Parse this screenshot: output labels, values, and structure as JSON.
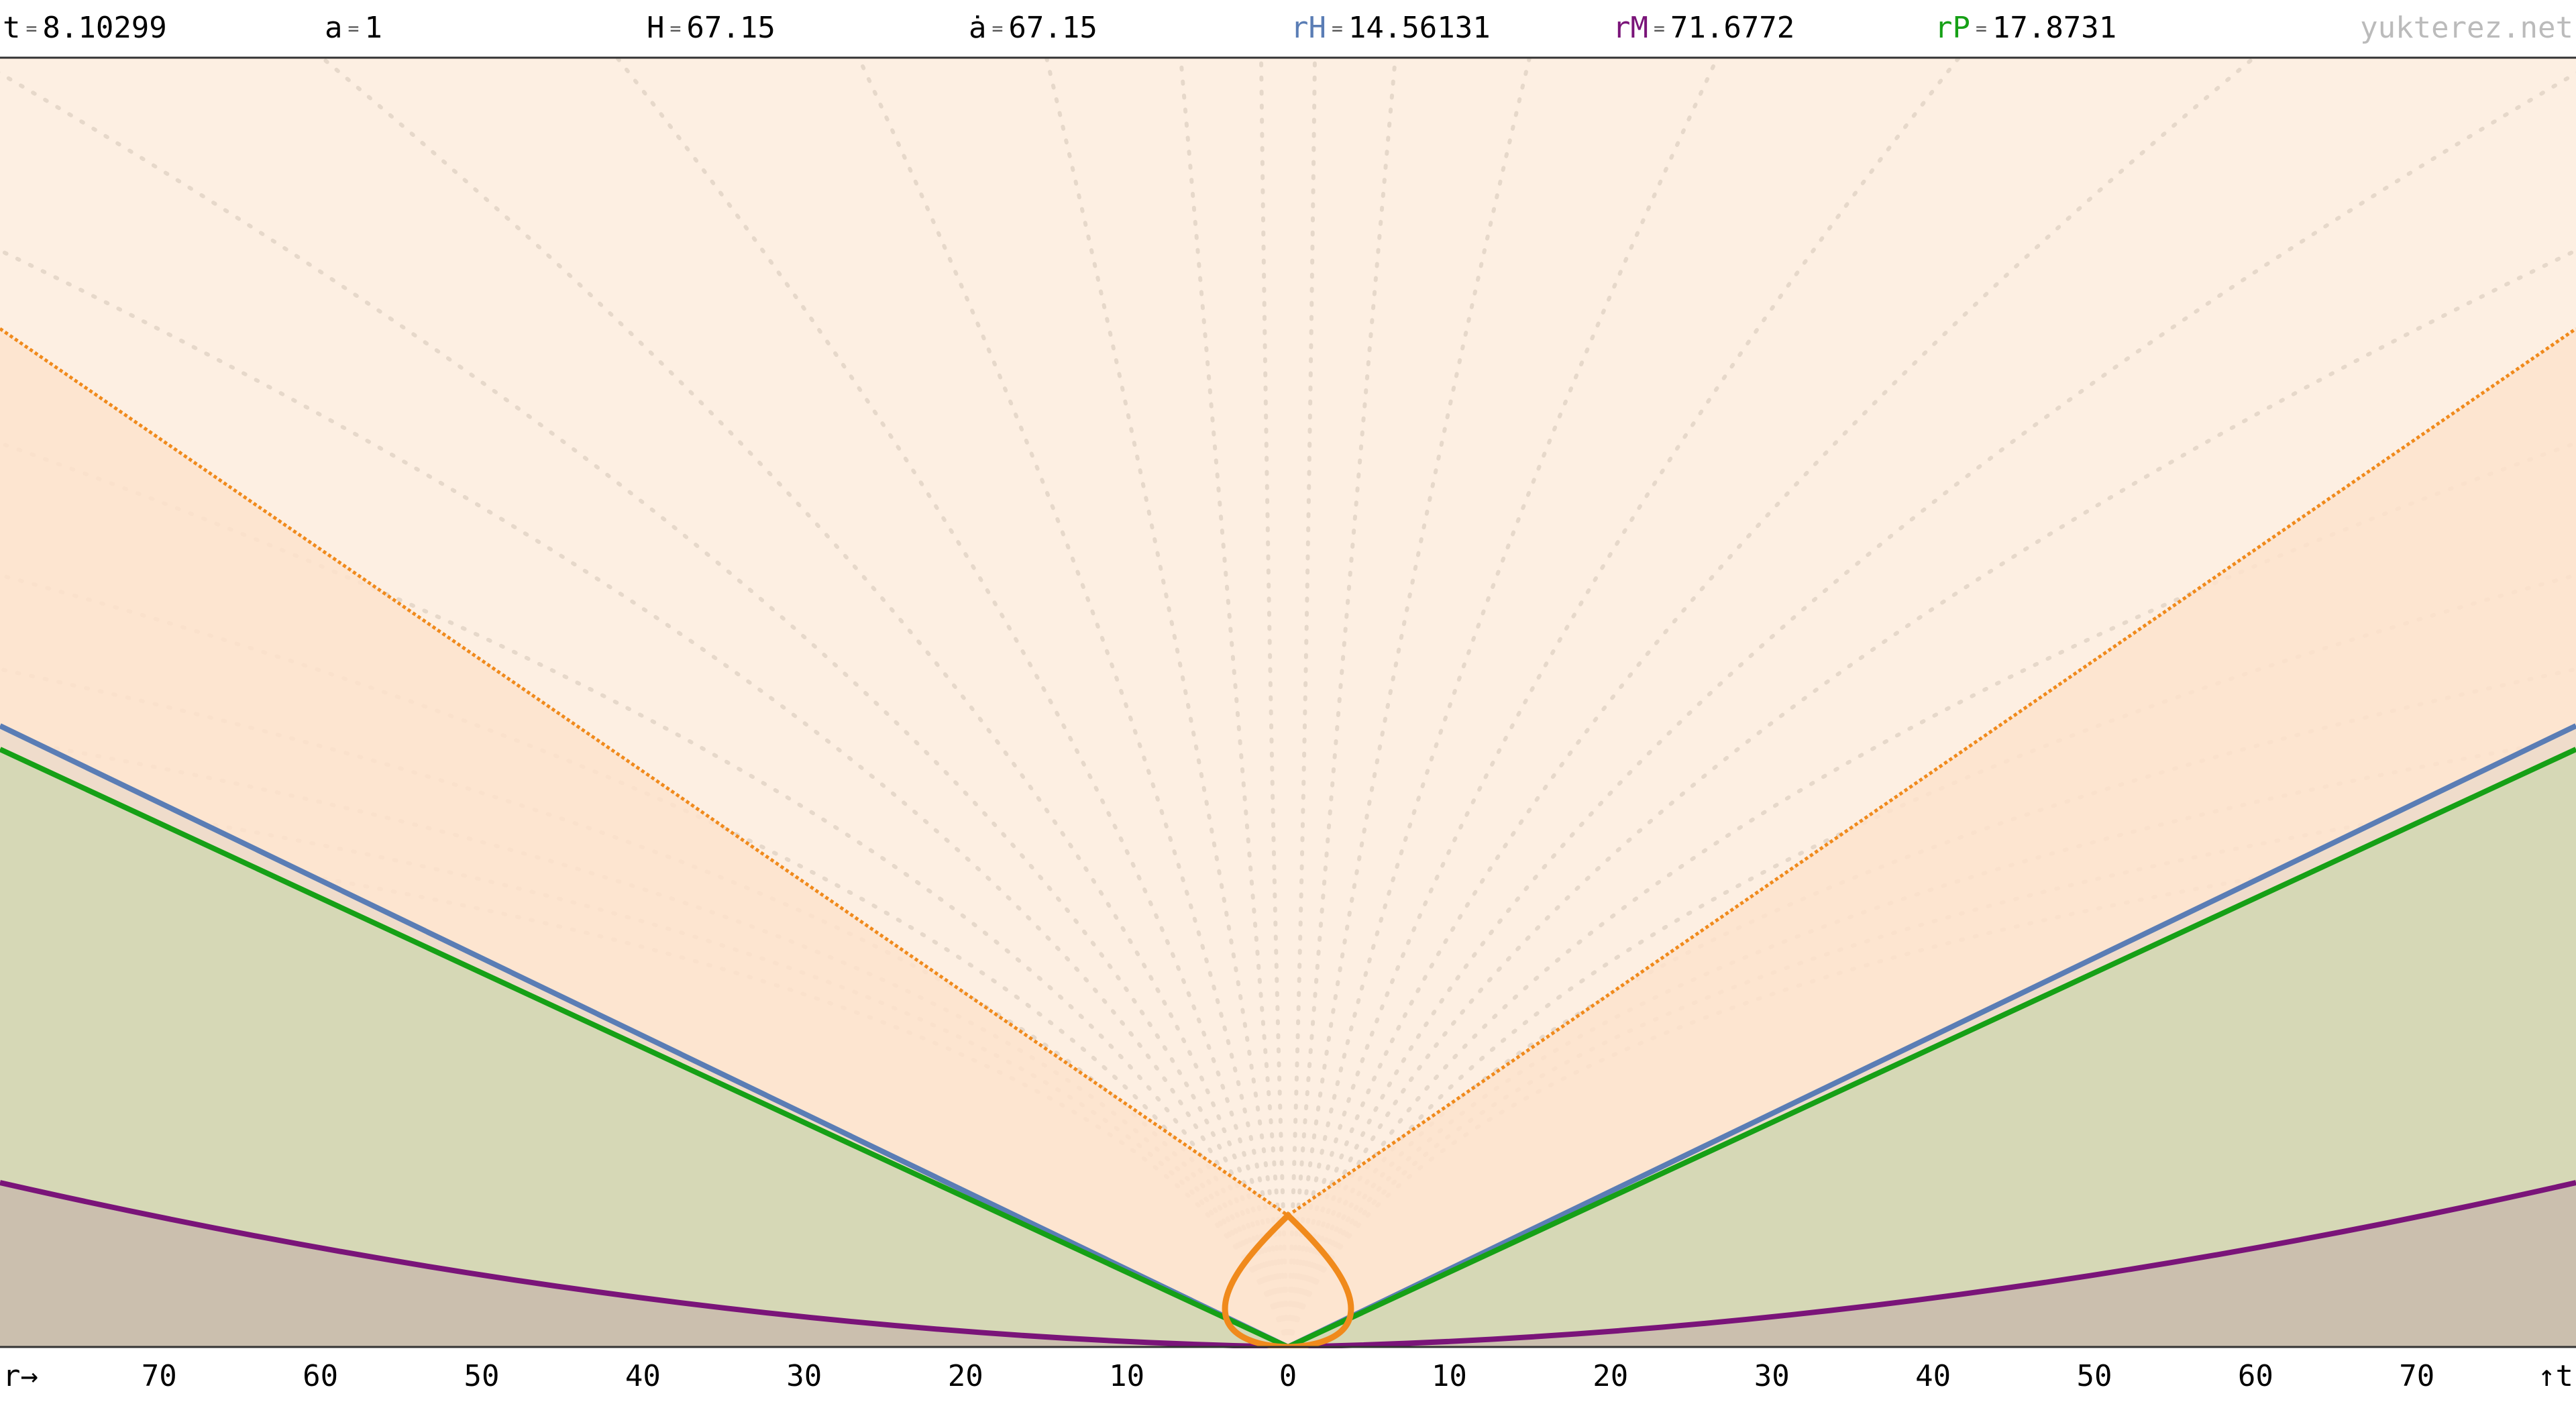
{
  "header": {
    "separator": "=",
    "items": [
      {
        "name": "t",
        "value": "8.10299"
      },
      {
        "name": "a",
        "value": "1"
      },
      {
        "name": "H",
        "value": "67.15"
      },
      {
        "name": "ȧ",
        "value": "67.15"
      },
      {
        "name": "rH",
        "value": "14.56131"
      },
      {
        "name": "rM",
        "value": "71.6772"
      },
      {
        "name": "rP",
        "value": "17.8731"
      }
    ],
    "site": "yukterez.net"
  },
  "axis": {
    "label": "r→",
    "corner": "↑t",
    "ticks": [
      "70",
      "60",
      "50",
      "40",
      "30",
      "20",
      "10",
      "0",
      "10",
      "20",
      "30",
      "40",
      "50",
      "60",
      "70"
    ]
  }
}
